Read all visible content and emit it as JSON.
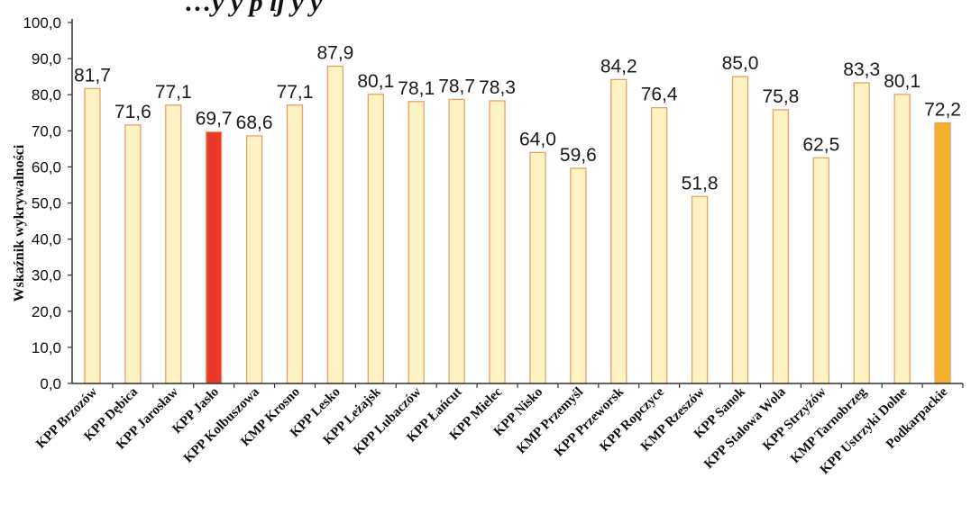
{
  "chart_data": {
    "type": "bar",
    "title_fragment": "…y y     p  ĳ     y     y",
    "xlabel": "",
    "ylabel": "Wskaźnik wykrywalności",
    "ylim": [
      0,
      100
    ],
    "yticks": [
      "0,0",
      "10,0",
      "20,0",
      "30,0",
      "40,0",
      "50,0",
      "60,0",
      "70,0",
      "80,0",
      "90,0",
      "100,0"
    ],
    "categories": [
      "KPP Brzozów",
      "KPP Dębica",
      "KPP Jarosław",
      "KPP Jasło",
      "KPP Kolbuszowa",
      "KMP Krosno",
      "KPP Lesko",
      "KPP Leżajsk",
      "KPP Lubaczów",
      "KPP Łańcut",
      "KPP Mielec",
      "KPP Nisko",
      "KMP Przemyśl",
      "KPP Przeworsk",
      "KPP Ropczyce",
      "KMP Rzeszów",
      "KPP Sanok",
      "KPP Stalowa Wola",
      "KPP Strzyżów",
      "KMP Tarnobrzeg",
      "KPP Ustrzyki Dolne",
      "Podkarpackie"
    ],
    "values": [
      81.7,
      71.6,
      77.1,
      69.7,
      68.6,
      77.1,
      87.9,
      80.1,
      78.1,
      78.7,
      78.3,
      64.0,
      59.6,
      84.2,
      76.4,
      51.8,
      85.0,
      75.8,
      62.5,
      83.3,
      80.1,
      72.2
    ],
    "value_labels": [
      "81,7",
      "71,6",
      "77,1",
      "69,7",
      "68,6",
      "77,1",
      "87,9",
      "80,1",
      "78,1",
      "78,7",
      "78,3",
      "64,0",
      "59,6",
      "84,2",
      "76,4",
      "51,8",
      "85,0",
      "75,8",
      "62,5",
      "83,3",
      "80,1",
      "72,2"
    ],
    "highlight": {
      "KPP Jasło": "#e8392a",
      "Podkarpackie": "#f5b02e"
    },
    "bar_color": "#fff3c4",
    "bar_edge_color": "#e8a06a",
    "grid": false,
    "legend": "none"
  }
}
